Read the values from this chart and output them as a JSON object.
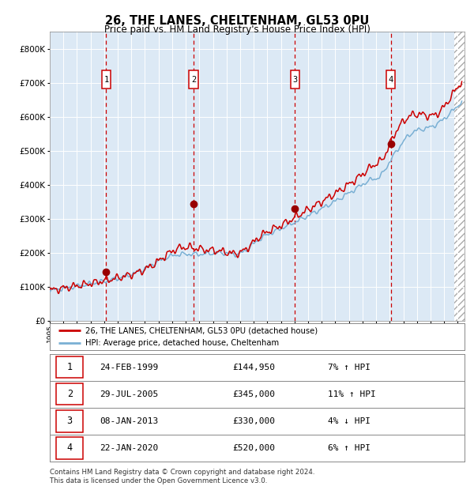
{
  "title": "26, THE LANES, CHELTENHAM, GL53 0PU",
  "subtitle": "Price paid vs. HM Land Registry's House Price Index (HPI)",
  "bg_color": "#dce9f5",
  "red_line_color": "#cc0000",
  "blue_line_color": "#7ab0d4",
  "marker_color": "#990000",
  "vline_color": "#cc0000",
  "transactions": [
    {
      "date_num": 1999.15,
      "price": 144950,
      "label": "1"
    },
    {
      "date_num": 2005.57,
      "price": 345000,
      "label": "2"
    },
    {
      "date_num": 2013.03,
      "price": 330000,
      "label": "3"
    },
    {
      "date_num": 2020.07,
      "price": 520000,
      "label": "4"
    }
  ],
  "table_rows": [
    {
      "num": "1",
      "date": "24-FEB-1999",
      "price": "£144,950",
      "hpi": "7% ↑ HPI"
    },
    {
      "num": "2",
      "date": "29-JUL-2005",
      "price": "£345,000",
      "hpi": "11% ↑ HPI"
    },
    {
      "num": "3",
      "date": "08-JAN-2013",
      "price": "£330,000",
      "hpi": "4% ↓ HPI"
    },
    {
      "num": "4",
      "date": "22-JAN-2020",
      "price": "£520,000",
      "hpi": "6% ↑ HPI"
    }
  ],
  "legend_entries": [
    "26, THE LANES, CHELTENHAM, GL53 0PU (detached house)",
    "HPI: Average price, detached house, Cheltenham"
  ],
  "footer": "Contains HM Land Registry data © Crown copyright and database right 2024.\nThis data is licensed under the Open Government Licence v3.0.",
  "xmin": 1995.0,
  "xmax": 2025.5,
  "ymin": 0,
  "ymax": 850000,
  "yticks": [
    0,
    100000,
    200000,
    300000,
    400000,
    500000,
    600000,
    700000,
    800000
  ]
}
